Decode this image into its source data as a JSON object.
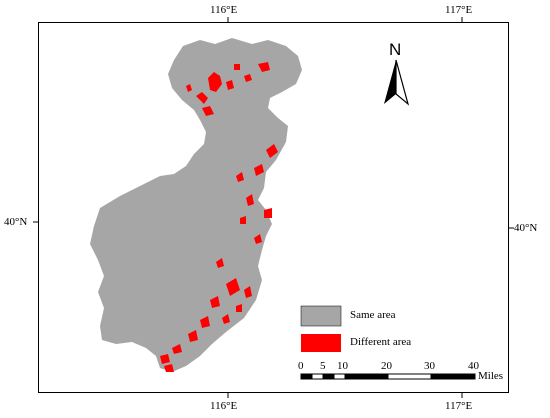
{
  "graticule": {
    "top_labels": [
      "116°E",
      "117°E"
    ],
    "bottom_labels": [
      "116°E",
      "117°E"
    ],
    "left_labels": [
      "40°N"
    ],
    "right_labels": [
      "40°N"
    ]
  },
  "north_arrow": {
    "label": "N"
  },
  "legend": {
    "items": [
      {
        "label": "Same area",
        "color": "#a6a6a6"
      },
      {
        "label": "Different area",
        "color": "#ff0000"
      }
    ]
  },
  "scale_bar": {
    "ticks": [
      "0",
      "5",
      "10",
      "20",
      "30",
      "40"
    ],
    "unit": "Miles"
  },
  "colors": {
    "region_fill": "#a6a6a6",
    "difference": "#ff0000",
    "frame": "#000000"
  }
}
